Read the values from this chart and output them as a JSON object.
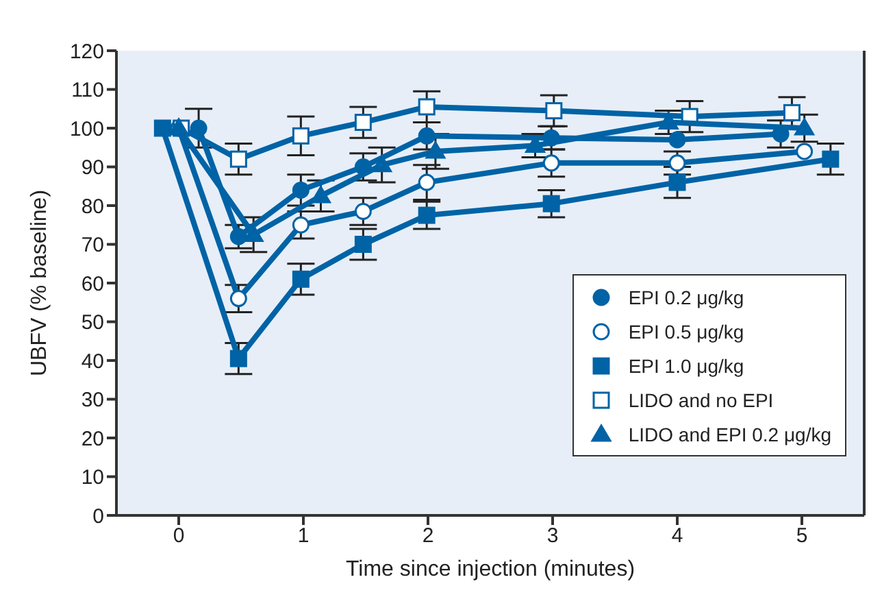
{
  "chart_data": {
    "type": "line",
    "xlabel": "Time since injection (minutes)",
    "ylabel": "UBFV (% baseline)",
    "xlim": [
      -0.5,
      5.5
    ],
    "xticks": [
      0,
      1,
      2,
      3,
      4,
      5
    ],
    "ylim": [
      0,
      120
    ],
    "yticks": [
      0,
      10,
      20,
      30,
      40,
      50,
      60,
      70,
      80,
      90,
      100,
      110,
      120
    ],
    "grid": false,
    "legend": "bottom right",
    "line_style": "solid",
    "series": [
      {
        "name": "EPI 0.2 μg/kg",
        "color": "#0063a6",
        "marker": "circle",
        "x": [
          0.16,
          0.48,
          0.98,
          1.48,
          1.99,
          2.99,
          4.0,
          4.83
        ],
        "values": [
          100,
          72,
          84,
          90,
          98,
          97.5,
          97,
          98.5
        ],
        "errors": [
          5,
          3,
          4,
          3.5,
          3.5,
          3,
          null,
          3.5
        ]
      },
      {
        "name": "EPI 0.5 μg/kg",
        "color": "#0063a6",
        "marker": "circle-open",
        "x": [
          0,
          0.48,
          0.98,
          1.48,
          1.99,
          2.99,
          4.0,
          5.02
        ],
        "values": [
          100,
          56,
          75,
          78.5,
          86,
          91,
          91,
          94
        ],
        "errors": [
          null,
          3.5,
          3.5,
          3.5,
          4.5,
          3.5,
          3,
          null
        ]
      },
      {
        "name": "EPI 1.0 μg/kg",
        "color": "#0063a6",
        "marker": "square",
        "x": [
          -0.13,
          0.48,
          0.98,
          1.48,
          1.99,
          2.99,
          4.0,
          5.23
        ],
        "values": [
          100,
          40.5,
          61,
          70,
          77.5,
          80.5,
          86,
          92
        ],
        "errors": [
          null,
          4,
          4,
          4,
          3.5,
          3.5,
          4,
          4
        ]
      },
      {
        "name": "LIDO and no EPI",
        "color": "#0063a6",
        "marker": "square-open",
        "x": [
          0.02,
          0.48,
          0.98,
          1.48,
          1.99,
          3.01,
          4.1,
          4.92
        ],
        "values": [
          100,
          92,
          98,
          101.5,
          105.5,
          104.5,
          103,
          104
        ],
        "errors": [
          null,
          4,
          5,
          4,
          4,
          4,
          4,
          4
        ]
      },
      {
        "name": "LIDO and EPI 0.2 μg/kg",
        "color": "#0063a6",
        "marker": "triangle",
        "x": [
          0,
          0.6,
          1.14,
          1.63,
          2.06,
          2.86,
          3.93,
          5.02
        ],
        "values": [
          100,
          72.5,
          82.5,
          90.5,
          94,
          95.5,
          101.5,
          100
        ],
        "errors": [
          null,
          4.5,
          4,
          4.5,
          4.5,
          3,
          3,
          3.5
        ]
      }
    ]
  }
}
